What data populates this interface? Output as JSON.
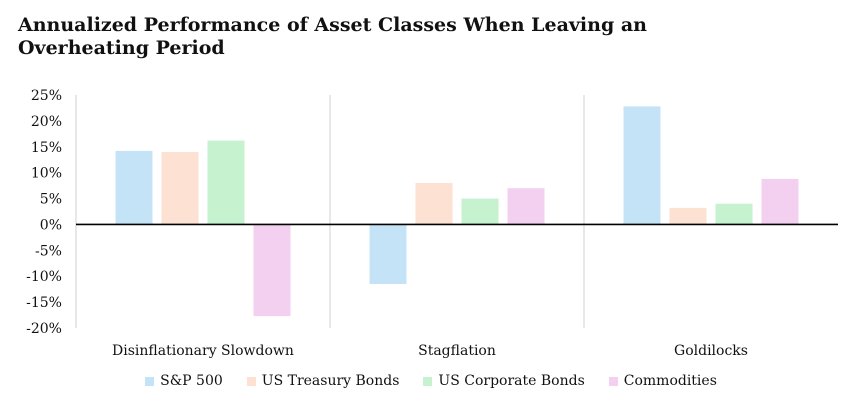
{
  "chart_data": {
    "type": "bar",
    "title": "Annualized Performance of Asset Classes When Leaving an Overheating Period",
    "categories": [
      "Disinflationary Slowdown",
      "Stagflation",
      "Goldilocks"
    ],
    "series": [
      {
        "name": "S&P 500",
        "color": "#c5e3f6",
        "values": [
          14.2,
          -11.5,
          22.8
        ]
      },
      {
        "name": "US Treasury Bonds",
        "color": "#fde1d2",
        "values": [
          14.0,
          8.0,
          3.2
        ]
      },
      {
        "name": "US Corporate Bonds",
        "color": "#c6f2cf",
        "values": [
          16.2,
          5.0,
          4.0
        ]
      },
      {
        "name": "Commodities",
        "color": "#f3cff0",
        "values": [
          -17.7,
          7.0,
          8.8
        ]
      }
    ],
    "ylim": [
      -20,
      25
    ],
    "yticks": [
      "-20%",
      "-15%",
      "-10%",
      "-5%",
      "0%",
      "5%",
      "10%",
      "15%",
      "20%",
      "25%"
    ],
    "ytick_values": [
      -20,
      -15,
      -10,
      -5,
      0,
      5,
      10,
      15,
      20,
      25
    ],
    "xlabel": "",
    "ylabel": "",
    "grid": false,
    "legend_position": "bottom"
  }
}
